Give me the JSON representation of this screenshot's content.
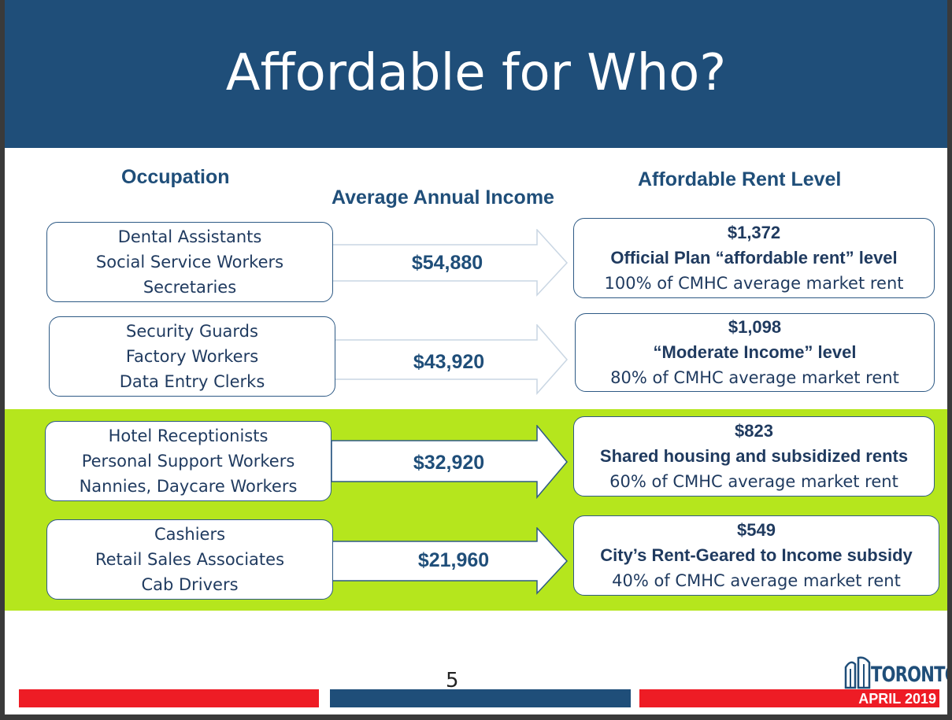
{
  "title": "Affordable for Who?",
  "headers": {
    "occupation": "Occupation",
    "income": "Average Annual Income",
    "rent": "Affordable Rent Level"
  },
  "rows": [
    {
      "occupations": [
        "Dental Assistants",
        "Social Service Workers",
        "Secretaries"
      ],
      "income": "$54,880",
      "rent_amount": "$1,372",
      "rent_level": "Official Plan “affordable rent” level",
      "rent_detail": "100% of CMHC average market rent"
    },
    {
      "occupations": [
        "Security Guards",
        "Factory Workers",
        "Data Entry Clerks"
      ],
      "income": "$43,920",
      "rent_amount": "$1,098",
      "rent_level": "“Moderate Income” level",
      "rent_detail": "80% of CMHC average market rent"
    },
    {
      "occupations": [
        "Hotel Receptionists",
        "Personal Support Workers",
        "Nannies, Daycare Workers"
      ],
      "income": "$32,920",
      "rent_amount": "$823",
      "rent_level": "Shared housing and subsidized rents",
      "rent_detail": "60% of CMHC average market rent"
    },
    {
      "occupations": [
        "Cashiers",
        "Retail Sales Associates",
        "Cab Drivers"
      ],
      "income": "$21,960",
      "rent_amount": "$549",
      "rent_level": "City’s Rent-Geared to Income subsidy",
      "rent_detail": "40% of CMHC average market rent"
    }
  ],
  "footer": {
    "page_number": "5",
    "logo_text": "TORONTO",
    "date": "APRIL 2019"
  },
  "colors": {
    "title_bar": "#1f4e79",
    "highlight_band": "#b5e61d",
    "footer_red": "#ee1c25",
    "footer_blue": "#1f4e79"
  }
}
